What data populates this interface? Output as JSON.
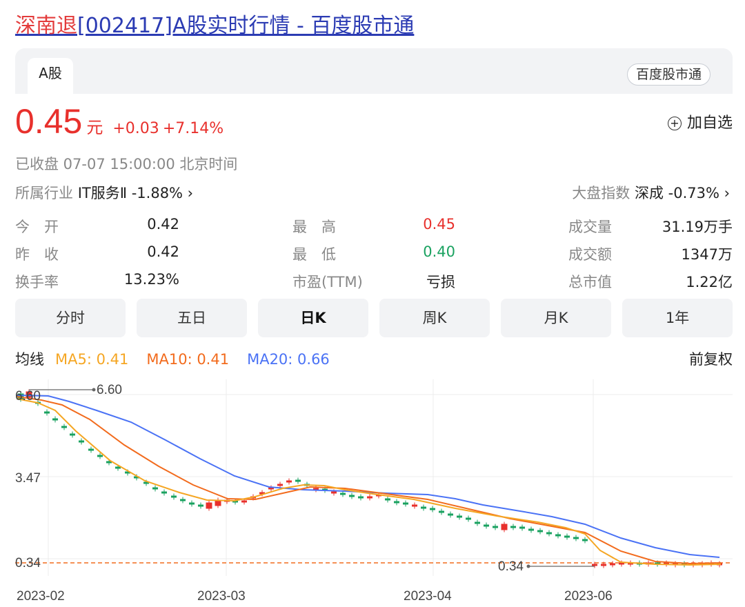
{
  "page": {
    "title_red": "深南退",
    "title_rest": "[002417]A股实时行情 - 百度股市通"
  },
  "tabs": {
    "a_share": "A股",
    "brand_pill": "百度股市通"
  },
  "quote": {
    "price": "0.45",
    "unit": "元",
    "change": "+0.03",
    "change_pct": "+7.14%",
    "add_favorite": "加自选",
    "status": "已收盘  07-07 15:00:00  北京时间",
    "industry_label": "所属行业",
    "industry_value": "IT服务Ⅱ -1.88% ›",
    "market_label": "大盘指数",
    "market_value": "深成 -0.73% ›"
  },
  "stats": {
    "open_label": "今　开",
    "open": "0.42",
    "high_label": "最　高",
    "high": "0.45",
    "volume_label": "成交量",
    "volume": "31.19万手",
    "prev_label": "昨　收",
    "prev": "0.42",
    "low_label": "最　低",
    "low": "0.40",
    "amount_label": "成交额",
    "amount": "1347万",
    "turnover_label": "换手率",
    "turnover": "13.23%",
    "pe_label": "市盈(TTM)",
    "pe": "亏损",
    "mcap_label": "总市值",
    "mcap": "1.22亿"
  },
  "periods": [
    "分时",
    "五日",
    "日K",
    "周K",
    "月K",
    "1年"
  ],
  "active_period": "日K",
  "ma": {
    "label": "均线",
    "ma5": "MA5: 0.41",
    "ma10": "MA10: 0.41",
    "ma20": "MA20: 0.66",
    "adjust": "前复权"
  },
  "colors": {
    "up": "#e8302c",
    "down": "#1aa260",
    "ma5": "#f5a623",
    "ma10": "#f26b1d",
    "ma20": "#4a72f5",
    "title": "#2b3bb3"
  },
  "chart_data": {
    "type": "candlestick",
    "y_ticks": [
      "6.60",
      "3.47",
      "0.34"
    ],
    "ylim": [
      0.34,
      6.6
    ],
    "x_ticks": [
      "2023-02",
      "2023-03",
      "2023-04",
      "2023-06"
    ],
    "high_annotation": "6.60",
    "low_annotation": "0.34",
    "reference_line": 0.34,
    "grid": true
  }
}
